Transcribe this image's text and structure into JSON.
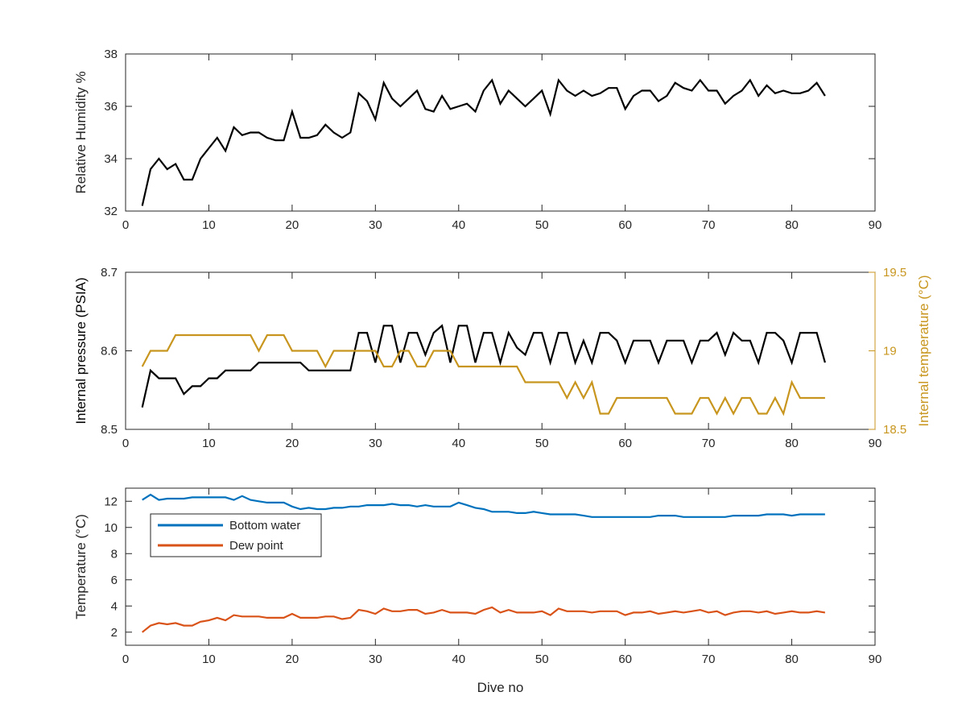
{
  "chart_data": [
    {
      "type": "line",
      "xlabel": "",
      "ylabel": "Relative Humidity %",
      "xlim": [
        0,
        90
      ],
      "ylim": [
        32,
        38
      ],
      "xticks": [
        0,
        10,
        20,
        30,
        40,
        50,
        60,
        70,
        80,
        90
      ],
      "yticks": [
        32,
        34,
        36,
        38
      ],
      "grid": false,
      "series": [
        {
          "color": "#000000",
          "x": [
            2,
            3,
            4,
            5,
            6,
            7,
            8,
            9,
            10,
            11,
            12,
            13,
            14,
            15,
            16,
            17,
            18,
            19,
            20,
            21,
            22,
            23,
            24,
            25,
            26,
            27,
            28,
            29,
            30,
            31,
            32,
            33,
            34,
            35,
            36,
            37,
            38,
            39,
            40,
            41,
            42,
            43,
            44,
            45,
            46,
            47,
            48,
            49,
            50,
            51,
            52,
            53,
            54,
            55,
            56,
            57,
            58,
            59,
            60,
            61,
            62,
            63,
            64,
            65,
            66,
            67,
            68,
            69,
            70,
            71,
            72,
            73,
            74,
            75,
            76,
            77,
            78,
            79,
            80,
            81,
            82,
            83,
            84
          ],
          "y": [
            32.2,
            33.6,
            34.0,
            33.6,
            33.8,
            33.2,
            33.2,
            34.0,
            34.4,
            34.8,
            34.3,
            35.2,
            34.9,
            35.0,
            35.0,
            34.8,
            34.7,
            34.7,
            35.8,
            34.8,
            34.8,
            34.9,
            35.3,
            35.0,
            34.8,
            35.0,
            36.5,
            36.2,
            35.5,
            36.9,
            36.3,
            36.0,
            36.3,
            36.6,
            35.9,
            35.8,
            36.4,
            35.9,
            36.0,
            36.1,
            35.8,
            36.6,
            37.0,
            36.1,
            36.6,
            36.3,
            36.0,
            36.3,
            36.6,
            35.7,
            37.0,
            36.6,
            36.4,
            36.6,
            36.4,
            36.5,
            36.7,
            36.7,
            35.9,
            36.4,
            36.6,
            36.6,
            36.2,
            36.4,
            36.9,
            36.7,
            36.6,
            37.0,
            36.6,
            36.6,
            36.1,
            36.4,
            36.6,
            37.0,
            36.4,
            36.8,
            36.5,
            36.6,
            36.5,
            36.5,
            36.6,
            36.9,
            36.4
          ]
        }
      ]
    },
    {
      "type": "line",
      "xlabel": "",
      "ylabel": "Internal pressure (PSIA)",
      "y2label": "Internal temperature (°C)",
      "xlim": [
        0,
        90
      ],
      "ylim": [
        8.5,
        8.7
      ],
      "y2lim": [
        18.5,
        19.5
      ],
      "xticks": [
        0,
        10,
        20,
        30,
        40,
        50,
        60,
        70,
        80,
        90
      ],
      "yticks": [
        8.5,
        8.6,
        8.7
      ],
      "y2ticks": [
        18.5,
        19,
        19.5
      ],
      "grid": false,
      "series": [
        {
          "axis": "left",
          "color": "#000000",
          "x": [
            2,
            3,
            4,
            5,
            6,
            7,
            8,
            9,
            10,
            11,
            12,
            13,
            14,
            15,
            16,
            17,
            18,
            19,
            20,
            21,
            22,
            23,
            24,
            25,
            26,
            27,
            28,
            29,
            30,
            31,
            32,
            33,
            34,
            35,
            36,
            37,
            38,
            39,
            40,
            41,
            42,
            43,
            44,
            45,
            46,
            47,
            48,
            49,
            50,
            51,
            52,
            53,
            54,
            55,
            56,
            57,
            58,
            59,
            60,
            61,
            62,
            63,
            64,
            65,
            66,
            67,
            68,
            69,
            70,
            71,
            72,
            73,
            74,
            75,
            76,
            77,
            78,
            79,
            80,
            81,
            82,
            83,
            84
          ],
          "y": [
            8.528,
            8.575,
            8.565,
            8.565,
            8.565,
            8.545,
            8.555,
            8.555,
            8.565,
            8.565,
            8.575,
            8.575,
            8.575,
            8.575,
            8.585,
            8.585,
            8.585,
            8.585,
            8.585,
            8.585,
            8.575,
            8.575,
            8.575,
            8.575,
            8.575,
            8.575,
            8.623,
            8.623,
            8.585,
            8.632,
            8.632,
            8.585,
            8.623,
            8.623,
            8.595,
            8.623,
            8.632,
            8.585,
            8.632,
            8.632,
            8.585,
            8.623,
            8.623,
            8.585,
            8.623,
            8.604,
            8.595,
            8.623,
            8.623,
            8.585,
            8.623,
            8.623,
            8.585,
            8.613,
            8.585,
            8.623,
            8.623,
            8.613,
            8.585,
            8.613,
            8.613,
            8.613,
            8.585,
            8.613,
            8.613,
            8.613,
            8.585,
            8.613,
            8.613,
            8.623,
            8.595,
            8.623,
            8.613,
            8.613,
            8.585,
            8.623,
            8.623,
            8.613,
            8.585,
            8.623,
            8.623,
            8.623,
            8.585
          ]
        },
        {
          "axis": "right",
          "color": "#C8961E",
          "x": [
            2,
            3,
            4,
            5,
            6,
            7,
            8,
            9,
            10,
            11,
            12,
            13,
            14,
            15,
            16,
            17,
            18,
            19,
            20,
            21,
            22,
            23,
            24,
            25,
            26,
            27,
            28,
            29,
            30,
            31,
            32,
            33,
            34,
            35,
            36,
            37,
            38,
            39,
            40,
            41,
            42,
            43,
            44,
            45,
            46,
            47,
            48,
            49,
            50,
            51,
            52,
            53,
            54,
            55,
            56,
            57,
            58,
            59,
            60,
            61,
            62,
            63,
            64,
            65,
            66,
            67,
            68,
            69,
            70,
            71,
            72,
            73,
            74,
            75,
            76,
            77,
            78,
            79,
            80,
            81,
            82,
            83,
            84
          ],
          "y": [
            18.9,
            19.0,
            19.0,
            19.0,
            19.1,
            19.1,
            19.1,
            19.1,
            19.1,
            19.1,
            19.1,
            19.1,
            19.1,
            19.1,
            19.0,
            19.1,
            19.1,
            19.1,
            19.0,
            19.0,
            19.0,
            19.0,
            18.9,
            19.0,
            19.0,
            19.0,
            19.0,
            19.0,
            19.0,
            18.9,
            18.9,
            19.0,
            19.0,
            18.9,
            18.9,
            19.0,
            19.0,
            19.0,
            18.9,
            18.9,
            18.9,
            18.9,
            18.9,
            18.9,
            18.9,
            18.9,
            18.8,
            18.8,
            18.8,
            18.8,
            18.8,
            18.7,
            18.8,
            18.7,
            18.8,
            18.6,
            18.6,
            18.7,
            18.7,
            18.7,
            18.7,
            18.7,
            18.7,
            18.7,
            18.6,
            18.6,
            18.6,
            18.7,
            18.7,
            18.6,
            18.7,
            18.6,
            18.7,
            18.7,
            18.6,
            18.6,
            18.7,
            18.6,
            18.8,
            18.7,
            18.7,
            18.7,
            18.7
          ]
        }
      ]
    },
    {
      "type": "line",
      "xlabel": "Dive no",
      "ylabel": "Temperature (°C)",
      "xlim": [
        0,
        90
      ],
      "ylim": [
        1,
        13
      ],
      "xticks": [
        0,
        10,
        20,
        30,
        40,
        50,
        60,
        70,
        80,
        90
      ],
      "yticks": [
        2,
        4,
        6,
        8,
        10,
        12
      ],
      "grid": false,
      "legend": "top-left",
      "series": [
        {
          "name": "Bottom water",
          "color": "#0072BD",
          "x": [
            2,
            3,
            4,
            5,
            6,
            7,
            8,
            9,
            10,
            11,
            12,
            13,
            14,
            15,
            16,
            17,
            18,
            19,
            20,
            21,
            22,
            23,
            24,
            25,
            26,
            27,
            28,
            29,
            30,
            31,
            32,
            33,
            34,
            35,
            36,
            37,
            38,
            39,
            40,
            41,
            42,
            43,
            44,
            45,
            46,
            47,
            48,
            49,
            50,
            51,
            52,
            53,
            54,
            55,
            56,
            57,
            58,
            59,
            60,
            61,
            62,
            63,
            64,
            65,
            66,
            67,
            68,
            69,
            70,
            71,
            72,
            73,
            74,
            75,
            76,
            77,
            78,
            79,
            80,
            81,
            82,
            83,
            84
          ],
          "y": [
            12.1,
            12.5,
            12.1,
            12.2,
            12.2,
            12.2,
            12.3,
            12.3,
            12.3,
            12.3,
            12.3,
            12.1,
            12.4,
            12.1,
            12.0,
            11.9,
            11.9,
            11.9,
            11.6,
            11.4,
            11.5,
            11.4,
            11.4,
            11.5,
            11.5,
            11.6,
            11.6,
            11.7,
            11.7,
            11.7,
            11.8,
            11.7,
            11.7,
            11.6,
            11.7,
            11.6,
            11.6,
            11.6,
            11.9,
            11.7,
            11.5,
            11.4,
            11.2,
            11.2,
            11.2,
            11.1,
            11.1,
            11.2,
            11.1,
            11.0,
            11.0,
            11.0,
            11.0,
            10.9,
            10.8,
            10.8,
            10.8,
            10.8,
            10.8,
            10.8,
            10.8,
            10.8,
            10.9,
            10.9,
            10.9,
            10.8,
            10.8,
            10.8,
            10.8,
            10.8,
            10.8,
            10.9,
            10.9,
            10.9,
            10.9,
            11.0,
            11.0,
            11.0,
            10.9,
            11.0,
            11.0,
            11.0,
            11.0
          ]
        },
        {
          "name": "Dew point",
          "color": "#D95319",
          "x": [
            2,
            3,
            4,
            5,
            6,
            7,
            8,
            9,
            10,
            11,
            12,
            13,
            14,
            15,
            16,
            17,
            18,
            19,
            20,
            21,
            22,
            23,
            24,
            25,
            26,
            27,
            28,
            29,
            30,
            31,
            32,
            33,
            34,
            35,
            36,
            37,
            38,
            39,
            40,
            41,
            42,
            43,
            44,
            45,
            46,
            47,
            48,
            49,
            50,
            51,
            52,
            53,
            54,
            55,
            56,
            57,
            58,
            59,
            60,
            61,
            62,
            63,
            64,
            65,
            66,
            67,
            68,
            69,
            70,
            71,
            72,
            73,
            74,
            75,
            76,
            77,
            78,
            79,
            80,
            81,
            82,
            83,
            84
          ],
          "y": [
            2.0,
            2.5,
            2.7,
            2.6,
            2.7,
            2.5,
            2.5,
            2.8,
            2.9,
            3.1,
            2.9,
            3.3,
            3.2,
            3.2,
            3.2,
            3.1,
            3.1,
            3.1,
            3.4,
            3.1,
            3.1,
            3.1,
            3.2,
            3.2,
            3.0,
            3.1,
            3.7,
            3.6,
            3.4,
            3.8,
            3.6,
            3.6,
            3.7,
            3.7,
            3.4,
            3.5,
            3.7,
            3.5,
            3.5,
            3.5,
            3.4,
            3.7,
            3.9,
            3.5,
            3.7,
            3.5,
            3.5,
            3.5,
            3.6,
            3.3,
            3.8,
            3.6,
            3.6,
            3.6,
            3.5,
            3.6,
            3.6,
            3.6,
            3.3,
            3.5,
            3.5,
            3.6,
            3.4,
            3.5,
            3.6,
            3.5,
            3.6,
            3.7,
            3.5,
            3.6,
            3.3,
            3.5,
            3.6,
            3.6,
            3.5,
            3.6,
            3.4,
            3.5,
            3.6,
            3.5,
            3.5,
            3.6,
            3.5
          ]
        }
      ]
    }
  ]
}
